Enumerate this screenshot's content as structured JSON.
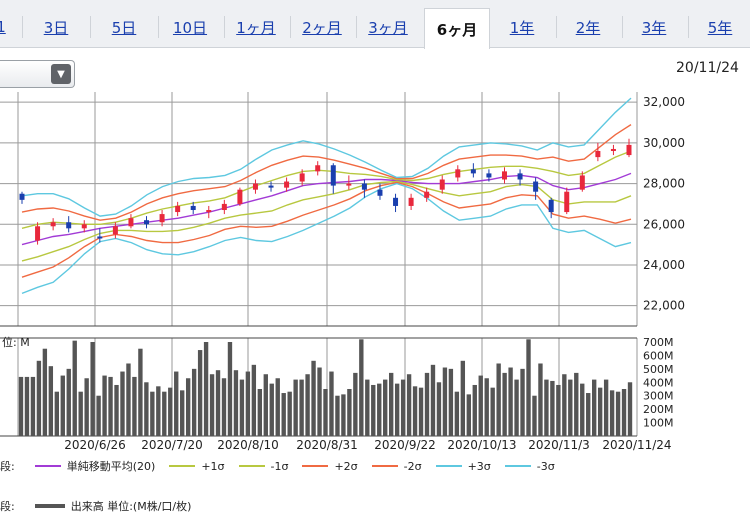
{
  "tabs": [
    {
      "label": "1"
    },
    {
      "label": "3日"
    },
    {
      "label": "5日"
    },
    {
      "label": "10日"
    },
    {
      "label": "1ヶ月"
    },
    {
      "label": "2ヶ月"
    },
    {
      "label": "3ヶ月"
    },
    {
      "label": "6ヶ月"
    },
    {
      "label": "1年"
    },
    {
      "label": "2年"
    },
    {
      "label": "3年"
    },
    {
      "label": "5年"
    }
  ],
  "active_tab": "6ヶ月",
  "dropdown": {
    "icon": "chevron-down-icon"
  },
  "date_label": "20/11/24",
  "chart_data": [
    {
      "type": "line",
      "title": "",
      "ylim": [
        21000,
        32500
      ],
      "yticks": [
        "32,000",
        "30,000",
        "28,000",
        "26,000",
        "24,000",
        "22,000"
      ],
      "ytick_values": [
        32000,
        30000,
        28000,
        26000,
        24000,
        22000
      ],
      "grid": true,
      "series": [
        {
          "name": "単純移動平均(20)",
          "color": "#a23bd6",
          "values": [
            25000,
            25200,
            25400,
            25500,
            25650,
            25800,
            25900,
            26000,
            26100,
            26200,
            26300,
            26450,
            26600,
            26800,
            27000,
            27200,
            27400,
            27650,
            27900,
            28000,
            28050,
            28100,
            28200,
            28200,
            28150,
            28050,
            28000,
            28000,
            28000,
            28100,
            28200,
            28350,
            28400,
            28300,
            27900,
            27700,
            27800,
            28000,
            28200,
            28500
          ]
        },
        {
          "name": "+1σ",
          "color": "#b8c840",
          "values": [
            25800,
            26000,
            26100,
            26050,
            26000,
            26000,
            26100,
            26300,
            26550,
            26750,
            26900,
            27050,
            27150,
            27300,
            27600,
            27900,
            28150,
            28400,
            28600,
            28650,
            28600,
            28500,
            28450,
            28350,
            28200,
            28150,
            28250,
            28450,
            28600,
            28700,
            28800,
            28850,
            28850,
            28750,
            28600,
            28400,
            28500,
            28900,
            29300,
            29600
          ]
        },
        {
          "name": "-1σ",
          "color": "#b8c840",
          "values": [
            24200,
            24400,
            24650,
            24900,
            25250,
            25550,
            25700,
            25700,
            25650,
            25650,
            25700,
            25850,
            26050,
            26300,
            26450,
            26550,
            26650,
            26950,
            27200,
            27350,
            27500,
            27700,
            27950,
            28050,
            28100,
            27950,
            27750,
            27550,
            27400,
            27500,
            27600,
            27850,
            27950,
            27850,
            27200,
            27000,
            27100,
            27100,
            27100,
            27400
          ]
        },
        {
          "name": "+2σ",
          "color": "#f06a42",
          "values": [
            26600,
            26750,
            26800,
            26650,
            26400,
            26200,
            26300,
            26600,
            27000,
            27300,
            27500,
            27650,
            27750,
            27850,
            28150,
            28550,
            28900,
            29150,
            29350,
            29300,
            29150,
            28950,
            28750,
            28500,
            28250,
            28250,
            28500,
            28900,
            29200,
            29300,
            29400,
            29400,
            29350,
            29200,
            29300,
            29100,
            29200,
            29800,
            30400,
            30900
          ]
        },
        {
          "name": "-2σ",
          "color": "#f06a42",
          "values": [
            23400,
            23650,
            23900,
            24350,
            24900,
            25350,
            25500,
            25400,
            25200,
            25100,
            25100,
            25250,
            25450,
            25750,
            25900,
            25850,
            25900,
            26150,
            26450,
            26700,
            26950,
            27250,
            27650,
            27900,
            28050,
            27850,
            27500,
            27100,
            26800,
            26900,
            27000,
            27300,
            27450,
            27400,
            26500,
            26300,
            26400,
            26250,
            26050,
            26250
          ]
        },
        {
          "name": "+3σ",
          "color": "#5ec8e0",
          "values": [
            27400,
            27500,
            27500,
            27250,
            26800,
            26400,
            26500,
            26900,
            27450,
            27850,
            28100,
            28250,
            28300,
            28400,
            28700,
            29200,
            29650,
            29900,
            30100,
            29950,
            29700,
            29400,
            29050,
            28650,
            28300,
            28350,
            28750,
            29350,
            29800,
            29900,
            30000,
            29950,
            29850,
            29650,
            30000,
            29800,
            29900,
            30700,
            31500,
            32200
          ]
        },
        {
          "name": "-3σ",
          "color": "#5ec8e0",
          "values": [
            22600,
            22900,
            23150,
            23800,
            24550,
            25150,
            25300,
            25100,
            24750,
            24550,
            24500,
            24650,
            24900,
            25200,
            25350,
            25200,
            25150,
            25400,
            25700,
            26050,
            26400,
            26800,
            27350,
            27750,
            28000,
            27750,
            27250,
            26650,
            26200,
            26300,
            26400,
            26750,
            26950,
            26950,
            25800,
            25600,
            25700,
            25300,
            24900,
            25100
          ]
        }
      ],
      "candles": [
        {
          "o": 27500,
          "c": 27200,
          "h": 27600,
          "l": 27000
        },
        {
          "o": 25200,
          "c": 25900,
          "h": 26100,
          "l": 25000
        },
        {
          "o": 25900,
          "c": 26100,
          "h": 26300,
          "l": 25700
        },
        {
          "o": 26100,
          "c": 25800,
          "h": 26400,
          "l": 25600
        },
        {
          "o": 25800,
          "c": 26000,
          "h": 26200,
          "l": 25600
        },
        {
          "o": 25400,
          "c": 25300,
          "h": 25800,
          "l": 25100
        },
        {
          "o": 25500,
          "c": 25900,
          "h": 26100,
          "l": 25300
        },
        {
          "o": 25900,
          "c": 26300,
          "h": 26500,
          "l": 25800
        },
        {
          "o": 26200,
          "c": 26000,
          "h": 26400,
          "l": 25800
        },
        {
          "o": 26100,
          "c": 26500,
          "h": 26700,
          "l": 25900
        },
        {
          "o": 26600,
          "c": 26900,
          "h": 27100,
          "l": 26400
        },
        {
          "o": 26900,
          "c": 26700,
          "h": 27100,
          "l": 26500
        },
        {
          "o": 26600,
          "c": 26700,
          "h": 26900,
          "l": 26300
        },
        {
          "o": 26700,
          "c": 27000,
          "h": 27200,
          "l": 26500
        },
        {
          "o": 27000,
          "c": 27700,
          "h": 27800,
          "l": 26900
        },
        {
          "o": 27700,
          "c": 28000,
          "h": 28200,
          "l": 27500
        },
        {
          "o": 27900,
          "c": 27800,
          "h": 28100,
          "l": 27600
        },
        {
          "o": 27800,
          "c": 28100,
          "h": 28300,
          "l": 27600
        },
        {
          "o": 28100,
          "c": 28500,
          "h": 28700,
          "l": 27900
        },
        {
          "o": 28600,
          "c": 28900,
          "h": 29100,
          "l": 28400
        },
        {
          "o": 28900,
          "c": 27900,
          "h": 29000,
          "l": 27500
        },
        {
          "o": 27900,
          "c": 28000,
          "h": 28400,
          "l": 27700
        },
        {
          "o": 28000,
          "c": 27700,
          "h": 28200,
          "l": 27300
        },
        {
          "o": 27700,
          "c": 27400,
          "h": 28000,
          "l": 27200
        },
        {
          "o": 27300,
          "c": 26900,
          "h": 27500,
          "l": 26600
        },
        {
          "o": 26900,
          "c": 27300,
          "h": 27500,
          "l": 26700
        },
        {
          "o": 27300,
          "c": 27600,
          "h": 27800,
          "l": 27100
        },
        {
          "o": 27700,
          "c": 28200,
          "h": 28400,
          "l": 27500
        },
        {
          "o": 28300,
          "c": 28700,
          "h": 28900,
          "l": 28100
        },
        {
          "o": 28700,
          "c": 28500,
          "h": 29000,
          "l": 28300
        },
        {
          "o": 28500,
          "c": 28300,
          "h": 28700,
          "l": 28100
        },
        {
          "o": 28200,
          "c": 28600,
          "h": 28800,
          "l": 28000
        },
        {
          "o": 28500,
          "c": 28200,
          "h": 28700,
          "l": 27900
        },
        {
          "o": 28100,
          "c": 27600,
          "h": 28300,
          "l": 27200
        },
        {
          "o": 27200,
          "c": 26600,
          "h": 27300,
          "l": 26300
        },
        {
          "o": 26600,
          "c": 27600,
          "h": 27800,
          "l": 26500
        },
        {
          "o": 27700,
          "c": 28400,
          "h": 28600,
          "l": 27600
        },
        {
          "o": 29300,
          "c": 29600,
          "h": 30000,
          "l": 29100
        },
        {
          "o": 29600,
          "c": 29700,
          "h": 29900,
          "l": 29400
        },
        {
          "o": 29400,
          "c": 29900,
          "h": 30200,
          "l": 29300
        }
      ]
    },
    {
      "type": "bar",
      "unit_label": "位: M",
      "ylim": [
        0,
        700
      ],
      "yticks": [
        "700M",
        "600M",
        "500M",
        "400M",
        "300M",
        "200M",
        "100M"
      ],
      "ytick_values": [
        700,
        600,
        500,
        400,
        300,
        200,
        100
      ],
      "series": [
        {
          "name": "出来高",
          "color": "#555555",
          "values": [
            440,
            440,
            440,
            560,
            650,
            520,
            330,
            450,
            500,
            710,
            330,
            430,
            700,
            300,
            450,
            440,
            380,
            480,
            540,
            440,
            650,
            400,
            330,
            370,
            330,
            360,
            480,
            340,
            430,
            500,
            640,
            700,
            460,
            490,
            430,
            700,
            490,
            420,
            480,
            530,
            350,
            460,
            390,
            430,
            320,
            330,
            420,
            420,
            460,
            560,
            510,
            350,
            480,
            300,
            310,
            350,
            470,
            720,
            420,
            380,
            390,
            420,
            470,
            390,
            420,
            460,
            370,
            360,
            470,
            530,
            400,
            510,
            500,
            330,
            560,
            310,
            380,
            450,
            430,
            360,
            540,
            470,
            510,
            420,
            500,
            720,
            300,
            540,
            420,
            410,
            380,
            460,
            420,
            470,
            390,
            320,
            420,
            360,
            420,
            340,
            330,
            350,
            400
          ]
        }
      ]
    }
  ],
  "x_ticks": [
    "2020/6/26",
    "2020/7/20",
    "2020/8/10",
    "2020/8/31",
    "2020/9/22",
    "2020/10/13",
    "2020/11/3",
    "2020/11/24"
  ],
  "legend1": {
    "prefix": "段:",
    "items": [
      {
        "label": "単純移動平均(20)",
        "color": "#a23bd6"
      },
      {
        "label": "+1σ",
        "color": "#b8c840"
      },
      {
        "label": "-1σ",
        "color": "#b8c840"
      },
      {
        "label": "+2σ",
        "color": "#f06a42"
      },
      {
        "label": "-2σ",
        "color": "#f06a42"
      },
      {
        "label": "+3σ",
        "color": "#5ec8e0"
      },
      {
        "label": "-3σ",
        "color": "#5ec8e0"
      }
    ]
  },
  "legend2": {
    "prefix": "段:",
    "items": [
      {
        "label": "出来高 単位:(M株/口/枚)",
        "color": "#555555"
      }
    ]
  },
  "colors": {
    "up": "#e8283c",
    "down": "#1a3fae",
    "grid": "#999999"
  }
}
